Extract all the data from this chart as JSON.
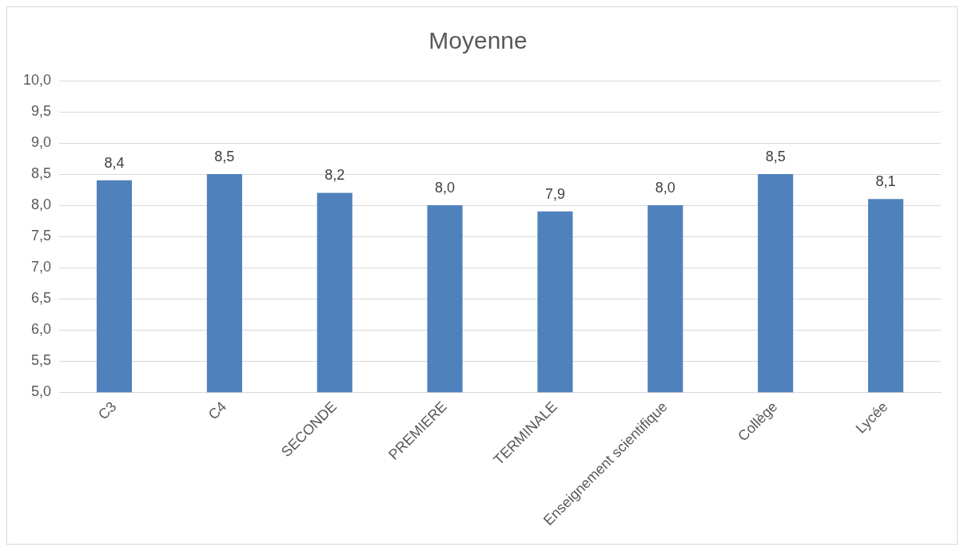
{
  "chart_data": {
    "type": "bar",
    "title": "Moyenne",
    "categories": [
      "C3",
      "C4",
      "SECONDE",
      "PREMIERE",
      "TERMINALE",
      "Enseignement scientifique",
      "Collège",
      "Lycée"
    ],
    "values": [
      8.4,
      8.5,
      8.2,
      8.0,
      7.9,
      8.0,
      8.5,
      8.1
    ],
    "color": "#4f81bd",
    "ylim": [
      5,
      10
    ],
    "yticks": [
      {
        "value": 5,
        "label": "5,0"
      },
      {
        "value": 5.5,
        "label": "5,5"
      },
      {
        "value": 6,
        "label": "6,0"
      },
      {
        "value": 6.5,
        "label": "6,5"
      },
      {
        "value": 7,
        "label": "7,0"
      },
      {
        "value": 7.5,
        "label": "7,5"
      },
      {
        "value": 8,
        "label": "8,0"
      },
      {
        "value": 8.5,
        "label": "8,5"
      },
      {
        "value": 9,
        "label": "9,0"
      },
      {
        "value": 9.5,
        "label": "9,5"
      },
      {
        "value": 10,
        "label": "10,0"
      }
    ],
    "value_labels": [
      "8,4",
      "8,5",
      "8,2",
      "8,0",
      "7,9",
      "8,0",
      "8,5",
      "8,1"
    ],
    "grid": "y",
    "legend": false
  }
}
